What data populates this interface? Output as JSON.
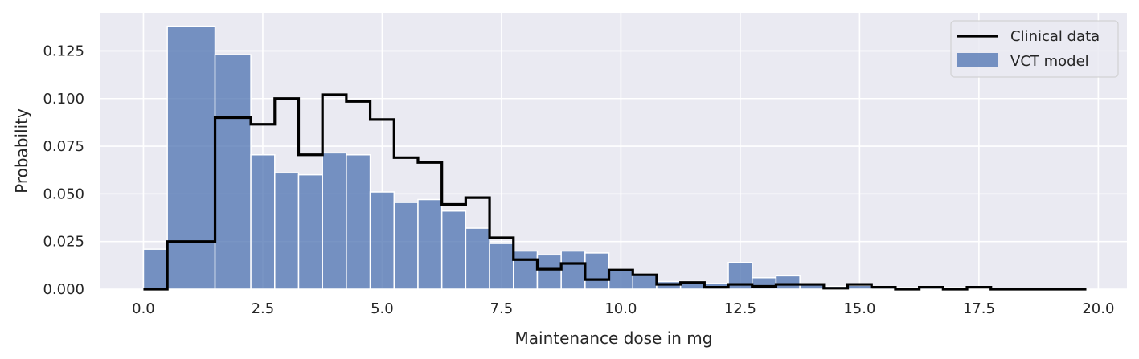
{
  "chart_data": {
    "type": "bar",
    "title": "",
    "xlabel": "Maintenance dose in mg",
    "ylabel": "Probability",
    "xlim": [
      -0.9,
      20.6
    ],
    "ylim": [
      0,
      0.145
    ],
    "grid": true,
    "legend_position": "top-right",
    "xticks": [
      0,
      2.5,
      5,
      7.5,
      10,
      12.5,
      15,
      17.5,
      20
    ],
    "xtick_labels": [
      "0.0",
      "2.5",
      "5.0",
      "7.5",
      "10.0",
      "12.5",
      "15.0",
      "17.5",
      "20.0"
    ],
    "yticks": [
      0,
      0.025,
      0.05,
      0.075,
      0.1,
      0.125
    ],
    "ytick_labels": [
      "0.000",
      "0.025",
      "0.050",
      "0.075",
      "0.100",
      "0.125"
    ],
    "colors": {
      "background": "#eaeaf2",
      "grid": "#ffffff",
      "bars": "#4c72b0",
      "line": "#000000"
    },
    "series": [
      {
        "name": "VCT model",
        "type": "histogram",
        "bin_edges": [
          0.0,
          0.5,
          1.5,
          2.25,
          2.75,
          3.25,
          3.75,
          4.25,
          4.75,
          5.25,
          5.75,
          6.25,
          6.75,
          7.25,
          7.75,
          8.25,
          8.75,
          9.25,
          9.75,
          10.25,
          10.75,
          11.25,
          11.75,
          12.25,
          12.75,
          13.25,
          13.75,
          14.25,
          14.75,
          15.25,
          15.75,
          16.25,
          16.75,
          17.25,
          17.75,
          18.25,
          18.75,
          19.25,
          19.75
        ],
        "values": [
          0.021,
          0.138,
          0.123,
          0.0705,
          0.061,
          0.06,
          0.0715,
          0.0705,
          0.051,
          0.0455,
          0.047,
          0.041,
          0.032,
          0.024,
          0.02,
          0.018,
          0.02,
          0.019,
          0.01,
          0.008,
          0.004,
          0.004,
          0.003,
          0.014,
          0.006,
          0.007,
          0.003,
          0.0015,
          0.002,
          0.001,
          0.0008,
          0.0008,
          0.0008,
          0.0006,
          0.0005,
          0.0004,
          0.0003,
          0.0003
        ]
      },
      {
        "name": "Clinical data",
        "type": "step",
        "x_edges": [
          0.0,
          0.5,
          1.5,
          2.25,
          2.75,
          3.25,
          3.75,
          4.25,
          4.75,
          5.25,
          5.75,
          6.25,
          6.75,
          7.25,
          7.75,
          8.25,
          8.75,
          9.25,
          9.75,
          10.25,
          10.75,
          11.25,
          11.75,
          12.25,
          12.75,
          13.25,
          13.75,
          14.25,
          14.75,
          15.25,
          15.75,
          16.25,
          16.75,
          17.25,
          17.75,
          18.25,
          18.75,
          19.25,
          19.75
        ],
        "values": [
          0.0,
          0.025,
          0.09,
          0.0865,
          0.1,
          0.0705,
          0.102,
          0.0985,
          0.089,
          0.069,
          0.0665,
          0.0445,
          0.048,
          0.027,
          0.0155,
          0.0105,
          0.0135,
          0.005,
          0.01,
          0.0075,
          0.0025,
          0.0035,
          0.001,
          0.0025,
          0.0015,
          0.0025,
          0.0025,
          0.0005,
          0.0025,
          0.001,
          0.0,
          0.001,
          0.0,
          0.001,
          0.0,
          0.0,
          0.0,
          0.0
        ]
      }
    ]
  }
}
